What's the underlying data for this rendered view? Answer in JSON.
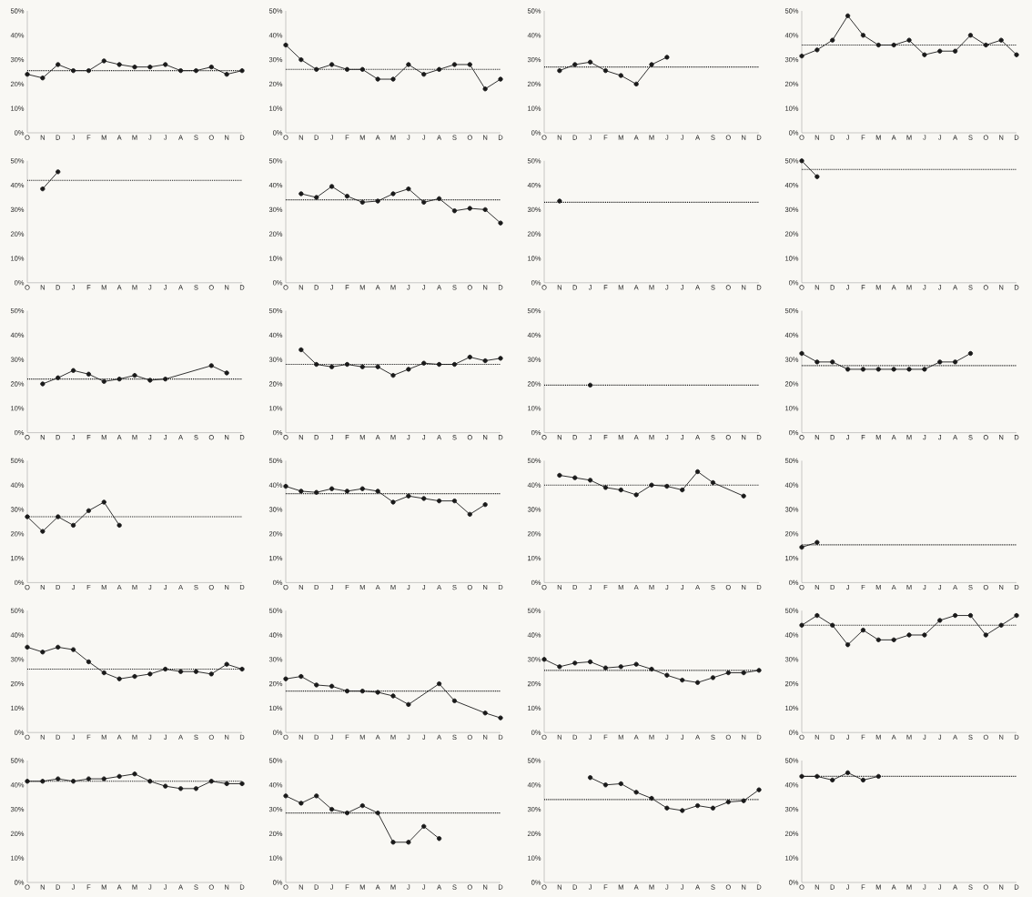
{
  "chart_data": [
    {
      "type": "line",
      "color": "#1a1a1a",
      "marker": "circle",
      "line_style": "solid",
      "categories": [
        "O",
        "N",
        "D",
        "J",
        "F",
        "M",
        "A",
        "M",
        "J",
        "J",
        "A",
        "S",
        "O",
        "N",
        "D"
      ],
      "values": [
        24,
        22.5,
        28,
        25.5,
        25.5,
        29.5,
        28,
        27,
        27,
        28,
        25.5,
        25.5,
        27,
        24,
        25.5
      ],
      "ylim": [
        0,
        50
      ],
      "yticks": [
        {
          "value": 0,
          "label": "0%"
        },
        {
          "value": 10,
          "label": "10%"
        },
        {
          "value": 20,
          "label": "20%"
        },
        {
          "value": 30,
          "label": "30%"
        },
        {
          "value": 40,
          "label": "40%"
        },
        {
          "value": 50,
          "label": "50%"
        }
      ],
      "ref_lines": [
        {
          "axis": "y",
          "value": 25.5,
          "line_style": "dotted",
          "color": "#1a1a1a"
        }
      ]
    },
    {
      "type": "line",
      "color": "#1a1a1a",
      "marker": "circle",
      "line_style": "solid",
      "categories": [
        "O",
        "N",
        "D",
        "J",
        "F",
        "M",
        "A",
        "M",
        "J",
        "J",
        "A",
        "S",
        "O",
        "N",
        "D"
      ],
      "values": [
        36,
        30,
        26,
        28,
        26,
        26,
        22,
        22,
        28,
        24,
        26,
        28,
        28,
        18,
        22
      ],
      "ylim": [
        0,
        50
      ],
      "yticks": [
        {
          "value": 0,
          "label": "0%"
        },
        {
          "value": 10,
          "label": "10%"
        },
        {
          "value": 20,
          "label": "20%"
        },
        {
          "value": 30,
          "label": "30%"
        },
        {
          "value": 40,
          "label": "40%"
        },
        {
          "value": 50,
          "label": "50%"
        }
      ],
      "ref_lines": [
        {
          "axis": "y",
          "value": 26,
          "line_style": "dotted",
          "color": "#1a1a1a"
        }
      ]
    },
    {
      "type": "line",
      "color": "#1a1a1a",
      "marker": "circle",
      "line_style": "solid",
      "categories": [
        "O",
        "N",
        "D",
        "J",
        "F",
        "M",
        "A",
        "M",
        "J",
        "J",
        "A",
        "S",
        "O",
        "N",
        "D"
      ],
      "values": [
        null,
        25.5,
        28,
        29,
        25.5,
        23.5,
        20,
        28,
        31,
        null,
        null,
        null,
        null,
        null,
        null
      ],
      "ylim": [
        0,
        50
      ],
      "yticks": [
        {
          "value": 0,
          "label": "0%"
        },
        {
          "value": 10,
          "label": "10%"
        },
        {
          "value": 20,
          "label": "20%"
        },
        {
          "value": 30,
          "label": "30%"
        },
        {
          "value": 40,
          "label": "40%"
        },
        {
          "value": 50,
          "label": "50%"
        }
      ],
      "ref_lines": [
        {
          "axis": "y",
          "value": 27,
          "line_style": "dotted",
          "color": "#1a1a1a"
        }
      ]
    },
    {
      "type": "line",
      "color": "#1a1a1a",
      "marker": "circle",
      "line_style": "solid",
      "categories": [
        "O",
        "N",
        "D",
        "J",
        "F",
        "M",
        "A",
        "M",
        "J",
        "J",
        "A",
        "S",
        "O",
        "N",
        "D"
      ],
      "values": [
        31.5,
        34,
        38,
        48,
        40,
        36,
        36,
        38,
        32,
        33.5,
        33.5,
        40,
        36,
        38,
        32
      ],
      "ylim": [
        0,
        50
      ],
      "yticks": [
        {
          "value": 0,
          "label": "0%"
        },
        {
          "value": 10,
          "label": "10%"
        },
        {
          "value": 20,
          "label": "20%"
        },
        {
          "value": 30,
          "label": "30%"
        },
        {
          "value": 40,
          "label": "40%"
        },
        {
          "value": 50,
          "label": "50%"
        }
      ],
      "ref_lines": [
        {
          "axis": "y",
          "value": 36,
          "line_style": "dotted",
          "color": "#1a1a1a"
        }
      ]
    },
    {
      "type": "line",
      "color": "#1a1a1a",
      "marker": "circle",
      "line_style": "solid",
      "categories": [
        "O",
        "N",
        "D",
        "J",
        "F",
        "M",
        "A",
        "M",
        "J",
        "J",
        "A",
        "S",
        "O",
        "N",
        "D"
      ],
      "values": [
        null,
        38.5,
        45.5,
        null,
        null,
        null,
        null,
        null,
        null,
        null,
        null,
        null,
        null,
        null,
        null
      ],
      "ylim": [
        0,
        50
      ],
      "yticks": [
        {
          "value": 0,
          "label": "0%"
        },
        {
          "value": 10,
          "label": "10%"
        },
        {
          "value": 20,
          "label": "20%"
        },
        {
          "value": 30,
          "label": "30%"
        },
        {
          "value": 40,
          "label": "40%"
        },
        {
          "value": 50,
          "label": "50%"
        }
      ],
      "ref_lines": [
        {
          "axis": "y",
          "value": 42,
          "line_style": "dotted",
          "color": "#1a1a1a"
        }
      ]
    },
    {
      "type": "line",
      "color": "#1a1a1a",
      "marker": "circle",
      "line_style": "solid",
      "categories": [
        "O",
        "N",
        "D",
        "J",
        "F",
        "M",
        "A",
        "M",
        "J",
        "J",
        "A",
        "S",
        "O",
        "N",
        "D"
      ],
      "values": [
        null,
        36.5,
        35,
        39.5,
        35.5,
        33,
        33.5,
        36.5,
        38.5,
        33,
        34.5,
        29.5,
        30.5,
        30,
        24.5
      ],
      "ylim": [
        0,
        50
      ],
      "yticks": [
        {
          "value": 0,
          "label": "0%"
        },
        {
          "value": 10,
          "label": "10%"
        },
        {
          "value": 20,
          "label": "20%"
        },
        {
          "value": 30,
          "label": "30%"
        },
        {
          "value": 40,
          "label": "40%"
        },
        {
          "value": 50,
          "label": "50%"
        }
      ],
      "ref_lines": [
        {
          "axis": "y",
          "value": 34,
          "line_style": "dotted",
          "color": "#1a1a1a"
        }
      ]
    },
    {
      "type": "line",
      "color": "#1a1a1a",
      "marker": "circle",
      "line_style": "solid",
      "categories": [
        "O",
        "N",
        "D",
        "J",
        "F",
        "M",
        "A",
        "M",
        "J",
        "J",
        "A",
        "S",
        "O",
        "N",
        "D"
      ],
      "values": [
        null,
        33.5,
        null,
        null,
        null,
        null,
        null,
        null,
        null,
        null,
        null,
        null,
        null,
        null,
        null
      ],
      "ylim": [
        0,
        50
      ],
      "yticks": [
        {
          "value": 0,
          "label": "0%"
        },
        {
          "value": 10,
          "label": "10%"
        },
        {
          "value": 20,
          "label": "20%"
        },
        {
          "value": 30,
          "label": "30%"
        },
        {
          "value": 40,
          "label": "40%"
        },
        {
          "value": 50,
          "label": "50%"
        }
      ],
      "ref_lines": [
        {
          "axis": "y",
          "value": 33,
          "line_style": "dotted",
          "color": "#1a1a1a"
        }
      ]
    },
    {
      "type": "line",
      "color": "#1a1a1a",
      "marker": "circle",
      "line_style": "solid",
      "categories": [
        "O",
        "N",
        "D",
        "J",
        "F",
        "M",
        "A",
        "M",
        "J",
        "J",
        "A",
        "S",
        "O",
        "N",
        "D"
      ],
      "values": [
        50,
        43.5,
        null,
        null,
        null,
        null,
        null,
        null,
        null,
        null,
        null,
        null,
        null,
        null,
        null
      ],
      "ylim": [
        0,
        50
      ],
      "yticks": [
        {
          "value": 0,
          "label": "0%"
        },
        {
          "value": 10,
          "label": "10%"
        },
        {
          "value": 20,
          "label": "20%"
        },
        {
          "value": 30,
          "label": "30%"
        },
        {
          "value": 40,
          "label": "40%"
        },
        {
          "value": 50,
          "label": "50%"
        }
      ],
      "ref_lines": [
        {
          "axis": "y",
          "value": 46.5,
          "line_style": "dotted",
          "color": "#1a1a1a"
        }
      ]
    },
    {
      "type": "line",
      "color": "#1a1a1a",
      "marker": "circle",
      "line_style": "solid",
      "categories": [
        "O",
        "N",
        "D",
        "J",
        "F",
        "M",
        "A",
        "M",
        "J",
        "J",
        "A",
        "S",
        "O",
        "N",
        "D"
      ],
      "values": [
        null,
        20,
        22.5,
        25.5,
        24,
        21,
        22,
        23.5,
        21.5,
        22,
        null,
        null,
        27.5,
        24.5,
        null
      ],
      "ylim": [
        0,
        50
      ],
      "yticks": [
        {
          "value": 0,
          "label": "0%"
        },
        {
          "value": 10,
          "label": "10%"
        },
        {
          "value": 20,
          "label": "20%"
        },
        {
          "value": 30,
          "label": "30%"
        },
        {
          "value": 40,
          "label": "40%"
        },
        {
          "value": 50,
          "label": "50%"
        }
      ],
      "ref_lines": [
        {
          "axis": "y",
          "value": 22,
          "line_style": "dotted",
          "color": "#1a1a1a"
        }
      ]
    },
    {
      "type": "line",
      "color": "#1a1a1a",
      "marker": "circle",
      "line_style": "solid",
      "categories": [
        "O",
        "N",
        "D",
        "J",
        "F",
        "M",
        "A",
        "M",
        "J",
        "J",
        "A",
        "S",
        "O",
        "N",
        "D"
      ],
      "values": [
        null,
        34,
        28,
        27,
        28,
        27,
        27,
        23.5,
        26,
        28.5,
        28,
        28,
        31,
        29.5,
        30.5
      ],
      "ylim": [
        0,
        50
      ],
      "yticks": [
        {
          "value": 0,
          "label": "0%"
        },
        {
          "value": 10,
          "label": "10%"
        },
        {
          "value": 20,
          "label": "20%"
        },
        {
          "value": 30,
          "label": "30%"
        },
        {
          "value": 40,
          "label": "40%"
        },
        {
          "value": 50,
          "label": "50%"
        }
      ],
      "ref_lines": [
        {
          "axis": "y",
          "value": 28,
          "line_style": "dotted",
          "color": "#1a1a1a"
        }
      ]
    },
    {
      "type": "line",
      "color": "#1a1a1a",
      "marker": "circle",
      "line_style": "solid",
      "categories": [
        "O",
        "N",
        "D",
        "J",
        "F",
        "M",
        "A",
        "M",
        "J",
        "J",
        "A",
        "S",
        "O",
        "N",
        "D"
      ],
      "values": [
        null,
        null,
        null,
        19.5,
        null,
        null,
        null,
        null,
        null,
        null,
        null,
        null,
        null,
        null,
        null
      ],
      "ylim": [
        0,
        50
      ],
      "yticks": [
        {
          "value": 0,
          "label": "0%"
        },
        {
          "value": 10,
          "label": "10%"
        },
        {
          "value": 20,
          "label": "20%"
        },
        {
          "value": 30,
          "label": "30%"
        },
        {
          "value": 40,
          "label": "40%"
        },
        {
          "value": 50,
          "label": "50%"
        }
      ],
      "ref_lines": [
        {
          "axis": "y",
          "value": 19.5,
          "line_style": "dotted",
          "color": "#1a1a1a"
        }
      ]
    },
    {
      "type": "line",
      "color": "#1a1a1a",
      "marker": "circle",
      "line_style": "solid",
      "categories": [
        "O",
        "N",
        "D",
        "J",
        "F",
        "M",
        "A",
        "M",
        "J",
        "J",
        "A",
        "S",
        "O",
        "N",
        "D"
      ],
      "values": [
        32.5,
        29,
        29,
        26,
        26,
        26,
        26,
        26,
        26,
        29,
        29,
        32.5,
        null,
        null,
        null
      ],
      "ylim": [
        0,
        50
      ],
      "yticks": [
        {
          "value": 0,
          "label": "0%"
        },
        {
          "value": 10,
          "label": "10%"
        },
        {
          "value": 20,
          "label": "20%"
        },
        {
          "value": 30,
          "label": "30%"
        },
        {
          "value": 40,
          "label": "40%"
        },
        {
          "value": 50,
          "label": "50%"
        }
      ],
      "ref_lines": [
        {
          "axis": "y",
          "value": 27.5,
          "line_style": "dotted",
          "color": "#1a1a1a"
        }
      ]
    },
    {
      "type": "line",
      "color": "#1a1a1a",
      "marker": "circle",
      "line_style": "solid",
      "categories": [
        "O",
        "N",
        "D",
        "J",
        "F",
        "M",
        "A",
        "M",
        "J",
        "J",
        "A",
        "S",
        "O",
        "N",
        "D"
      ],
      "values": [
        27,
        21,
        27,
        23.5,
        29.5,
        33,
        23.5,
        null,
        null,
        null,
        null,
        null,
        null,
        null,
        null
      ],
      "ylim": [
        0,
        50
      ],
      "yticks": [
        {
          "value": 0,
          "label": "0%"
        },
        {
          "value": 10,
          "label": "10%"
        },
        {
          "value": 20,
          "label": "20%"
        },
        {
          "value": 30,
          "label": "30%"
        },
        {
          "value": 40,
          "label": "40%"
        },
        {
          "value": 50,
          "label": "50%"
        }
      ],
      "ref_lines": [
        {
          "axis": "y",
          "value": 27,
          "line_style": "dotted",
          "color": "#1a1a1a"
        }
      ]
    },
    {
      "type": "line",
      "color": "#1a1a1a",
      "marker": "circle",
      "line_style": "solid",
      "categories": [
        "O",
        "N",
        "D",
        "J",
        "F",
        "M",
        "A",
        "M",
        "J",
        "J",
        "A",
        "S",
        "O",
        "N",
        "D"
      ],
      "values": [
        39.5,
        37.5,
        37,
        38.5,
        37.5,
        38.5,
        37.5,
        33,
        35.5,
        34.5,
        33.5,
        33.5,
        28,
        32,
        null
      ],
      "ylim": [
        0,
        50
      ],
      "yticks": [
        {
          "value": 0,
          "label": "0%"
        },
        {
          "value": 10,
          "label": "10%"
        },
        {
          "value": 20,
          "label": "20%"
        },
        {
          "value": 30,
          "label": "30%"
        },
        {
          "value": 40,
          "label": "40%"
        },
        {
          "value": 50,
          "label": "50%"
        }
      ],
      "ref_lines": [
        {
          "axis": "y",
          "value": 36.5,
          "line_style": "dotted",
          "color": "#1a1a1a"
        }
      ]
    },
    {
      "type": "line",
      "color": "#1a1a1a",
      "marker": "circle",
      "line_style": "solid",
      "categories": [
        "O",
        "N",
        "D",
        "J",
        "F",
        "M",
        "A",
        "M",
        "J",
        "J",
        "A",
        "S",
        "O",
        "N",
        "D"
      ],
      "values": [
        null,
        44,
        43,
        42,
        39,
        38,
        36,
        40,
        39.5,
        38,
        45.5,
        41,
        null,
        35.5,
        null
      ],
      "ylim": [
        0,
        50
      ],
      "yticks": [
        {
          "value": 0,
          "label": "0%"
        },
        {
          "value": 10,
          "label": "10%"
        },
        {
          "value": 20,
          "label": "20%"
        },
        {
          "value": 30,
          "label": "30%"
        },
        {
          "value": 40,
          "label": "40%"
        },
        {
          "value": 50,
          "label": "50%"
        }
      ],
      "ref_lines": [
        {
          "axis": "y",
          "value": 40,
          "line_style": "dotted",
          "color": "#1a1a1a"
        }
      ]
    },
    {
      "type": "line",
      "color": "#1a1a1a",
      "marker": "circle",
      "line_style": "solid",
      "categories": [
        "O",
        "N",
        "D",
        "J",
        "F",
        "M",
        "A",
        "M",
        "J",
        "J",
        "A",
        "S",
        "O",
        "N",
        "D"
      ],
      "values": [
        14.5,
        16.5,
        null,
        null,
        null,
        null,
        null,
        null,
        null,
        null,
        null,
        null,
        null,
        null,
        null
      ],
      "ylim": [
        0,
        50
      ],
      "yticks": [
        {
          "value": 0,
          "label": "0%"
        },
        {
          "value": 10,
          "label": "10%"
        },
        {
          "value": 20,
          "label": "20%"
        },
        {
          "value": 30,
          "label": "30%"
        },
        {
          "value": 40,
          "label": "40%"
        },
        {
          "value": 50,
          "label": "50%"
        }
      ],
      "ref_lines": [
        {
          "axis": "y",
          "value": 15.5,
          "line_style": "dotted",
          "color": "#1a1a1a"
        }
      ]
    },
    {
      "type": "line",
      "color": "#1a1a1a",
      "marker": "circle",
      "line_style": "solid",
      "categories": [
        "O",
        "N",
        "D",
        "J",
        "F",
        "M",
        "A",
        "M",
        "J",
        "J",
        "A",
        "S",
        "O",
        "N",
        "D"
      ],
      "values": [
        35,
        33,
        35,
        34,
        29,
        24.5,
        22,
        23,
        24,
        26,
        25,
        25,
        24,
        28,
        26
      ],
      "ylim": [
        0,
        50
      ],
      "yticks": [
        {
          "value": 0,
          "label": "0%"
        },
        {
          "value": 10,
          "label": "10%"
        },
        {
          "value": 20,
          "label": "20%"
        },
        {
          "value": 30,
          "label": "30%"
        },
        {
          "value": 40,
          "label": "40%"
        },
        {
          "value": 50,
          "label": "50%"
        }
      ],
      "ref_lines": [
        {
          "axis": "y",
          "value": 26,
          "line_style": "dotted",
          "color": "#1a1a1a"
        }
      ]
    },
    {
      "type": "line",
      "color": "#1a1a1a",
      "marker": "circle",
      "line_style": "solid",
      "categories": [
        "O",
        "N",
        "D",
        "J",
        "F",
        "M",
        "A",
        "M",
        "J",
        "J",
        "A",
        "S",
        "O",
        "N",
        "D"
      ],
      "values": [
        22,
        23,
        19.5,
        19,
        17,
        17,
        16.5,
        15,
        11.5,
        null,
        20,
        13,
        null,
        8,
        6
      ],
      "ylim": [
        0,
        50
      ],
      "yticks": [
        {
          "value": 0,
          "label": "0%"
        },
        {
          "value": 10,
          "label": "10%"
        },
        {
          "value": 20,
          "label": "20%"
        },
        {
          "value": 30,
          "label": "30%"
        },
        {
          "value": 40,
          "label": "40%"
        },
        {
          "value": 50,
          "label": "50%"
        }
      ],
      "ref_lines": [
        {
          "axis": "y",
          "value": 17,
          "line_style": "dotted",
          "color": "#1a1a1a"
        }
      ]
    },
    {
      "type": "line",
      "color": "#1a1a1a",
      "marker": "circle",
      "line_style": "solid",
      "categories": [
        "O",
        "N",
        "D",
        "J",
        "F",
        "M",
        "A",
        "M",
        "J",
        "J",
        "A",
        "S",
        "O",
        "N",
        "D"
      ],
      "values": [
        30,
        27,
        28.5,
        29,
        26.5,
        27,
        28,
        26,
        23.5,
        21.5,
        20.5,
        22.5,
        24.5,
        24.5,
        25.5
      ],
      "ylim": [
        0,
        50
      ],
      "yticks": [
        {
          "value": 0,
          "label": "0%"
        },
        {
          "value": 10,
          "label": "10%"
        },
        {
          "value": 20,
          "label": "20%"
        },
        {
          "value": 30,
          "label": "30%"
        },
        {
          "value": 40,
          "label": "40%"
        },
        {
          "value": 50,
          "label": "50%"
        }
      ],
      "ref_lines": [
        {
          "axis": "y",
          "value": 25.5,
          "line_style": "dotted",
          "color": "#1a1a1a"
        }
      ]
    },
    {
      "type": "line",
      "color": "#1a1a1a",
      "marker": "circle",
      "line_style": "solid",
      "categories": [
        "O",
        "N",
        "D",
        "J",
        "F",
        "M",
        "A",
        "M",
        "J",
        "J",
        "A",
        "S",
        "O",
        "N",
        "D"
      ],
      "values": [
        44,
        48,
        44,
        36,
        42,
        38,
        38,
        40,
        40,
        46,
        48,
        48,
        40,
        44,
        48
      ],
      "ylim": [
        0,
        50
      ],
      "yticks": [
        {
          "value": 0,
          "label": "0%"
        },
        {
          "value": 10,
          "label": "10%"
        },
        {
          "value": 20,
          "label": "20%"
        },
        {
          "value": 30,
          "label": "30%"
        },
        {
          "value": 40,
          "label": "40%"
        },
        {
          "value": 50,
          "label": "50%"
        }
      ],
      "ref_lines": [
        {
          "axis": "y",
          "value": 44,
          "line_style": "dotted",
          "color": "#1a1a1a"
        }
      ]
    },
    {
      "type": "line",
      "color": "#1a1a1a",
      "marker": "circle",
      "line_style": "solid",
      "categories": [
        "O",
        "N",
        "D",
        "J",
        "F",
        "M",
        "A",
        "M",
        "J",
        "J",
        "A",
        "S",
        "O",
        "N",
        "D"
      ],
      "values": [
        41.5,
        41.5,
        42.5,
        41.5,
        42.5,
        42.5,
        43.5,
        44.5,
        41.5,
        39.5,
        38.5,
        38.5,
        41.5,
        40.5,
        40.5
      ],
      "ylim": [
        0,
        50
      ],
      "yticks": [
        {
          "value": 0,
          "label": "0%"
        },
        {
          "value": 10,
          "label": "10%"
        },
        {
          "value": 20,
          "label": "20%"
        },
        {
          "value": 30,
          "label": "30%"
        },
        {
          "value": 40,
          "label": "40%"
        },
        {
          "value": 50,
          "label": "50%"
        }
      ],
      "ref_lines": [
        {
          "axis": "y",
          "value": 41.5,
          "line_style": "dotted",
          "color": "#1a1a1a"
        }
      ]
    },
    {
      "type": "line",
      "color": "#1a1a1a",
      "marker": "circle",
      "line_style": "solid",
      "categories": [
        "O",
        "N",
        "D",
        "J",
        "F",
        "M",
        "A",
        "M",
        "J",
        "J",
        "A",
        "S",
        "O",
        "N",
        "D"
      ],
      "values": [
        35.5,
        32.5,
        35.5,
        30,
        28.5,
        31.5,
        28.5,
        16.5,
        16.5,
        23,
        18,
        null,
        null,
        null,
        null
      ],
      "ylim": [
        0,
        50
      ],
      "yticks": [
        {
          "value": 0,
          "label": "0%"
        },
        {
          "value": 10,
          "label": "10%"
        },
        {
          "value": 20,
          "label": "20%"
        },
        {
          "value": 30,
          "label": "30%"
        },
        {
          "value": 40,
          "label": "40%"
        },
        {
          "value": 50,
          "label": "50%"
        }
      ],
      "ref_lines": [
        {
          "axis": "y",
          "value": 28.5,
          "line_style": "dotted",
          "color": "#1a1a1a"
        }
      ]
    },
    {
      "type": "line",
      "color": "#1a1a1a",
      "marker": "circle",
      "line_style": "solid",
      "categories": [
        "O",
        "N",
        "D",
        "J",
        "F",
        "M",
        "A",
        "M",
        "J",
        "J",
        "A",
        "S",
        "O",
        "N",
        "D"
      ],
      "values": [
        null,
        null,
        null,
        43,
        40,
        40.5,
        37,
        34.5,
        30.5,
        29.5,
        31.5,
        30.5,
        33,
        33.5,
        38
      ],
      "ylim": [
        0,
        50
      ],
      "yticks": [
        {
          "value": 0,
          "label": "0%"
        },
        {
          "value": 10,
          "label": "10%"
        },
        {
          "value": 20,
          "label": "20%"
        },
        {
          "value": 30,
          "label": "30%"
        },
        {
          "value": 40,
          "label": "40%"
        },
        {
          "value": 50,
          "label": "50%"
        }
      ],
      "ref_lines": [
        {
          "axis": "y",
          "value": 34,
          "line_style": "dotted",
          "color": "#1a1a1a"
        }
      ]
    },
    {
      "type": "line",
      "color": "#1a1a1a",
      "marker": "circle",
      "line_style": "solid",
      "categories": [
        "O",
        "N",
        "D",
        "J",
        "F",
        "M",
        "A",
        "M",
        "J",
        "J",
        "A",
        "S",
        "O",
        "N",
        "D"
      ],
      "values": [
        43.5,
        43.5,
        42,
        45,
        42,
        43.5,
        null,
        null,
        null,
        null,
        null,
        null,
        null,
        null,
        null
      ],
      "ylim": [
        0,
        50
      ],
      "yticks": [
        {
          "value": 0,
          "label": "0%"
        },
        {
          "value": 10,
          "label": "10%"
        },
        {
          "value": 20,
          "label": "20%"
        },
        {
          "value": 30,
          "label": "30%"
        },
        {
          "value": 40,
          "label": "40%"
        },
        {
          "value": 50,
          "label": "50%"
        }
      ],
      "ref_lines": [
        {
          "axis": "y",
          "value": 43.5,
          "line_style": "dotted",
          "color": "#1a1a1a"
        }
      ]
    }
  ]
}
